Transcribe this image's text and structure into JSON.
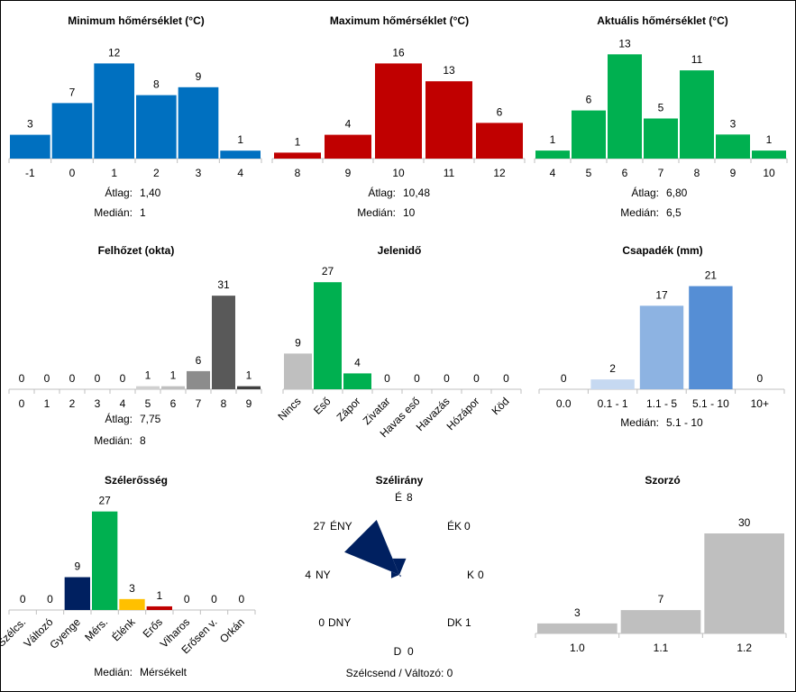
{
  "chart_data": [
    {
      "id": "min-temp",
      "type": "bar",
      "title": "Minimum hőmérséklet (°C)",
      "categories": [
        "-1",
        "0",
        "1",
        "2",
        "3",
        "4"
      ],
      "values": [
        3,
        7,
        12,
        8,
        9,
        1
      ],
      "colors": [
        "#0070c0",
        "#0070c0",
        "#0070c0",
        "#0070c0",
        "#0070c0",
        "#0070c0"
      ],
      "stats": [
        {
          "label": "Átlag:",
          "value": "1,40"
        },
        {
          "label": "Medián:",
          "value": "1"
        }
      ]
    },
    {
      "id": "max-temp",
      "type": "bar",
      "title": "Maximum hőmérséklet (°C)",
      "categories": [
        "8",
        "9",
        "10",
        "11",
        "12"
      ],
      "values": [
        1,
        4,
        16,
        13,
        6
      ],
      "colors": [
        "#c00000",
        "#c00000",
        "#c00000",
        "#c00000",
        "#c00000"
      ],
      "stats": [
        {
          "label": "Átlag:",
          "value": "10,48"
        },
        {
          "label": "Medián:",
          "value": "10"
        }
      ]
    },
    {
      "id": "current-temp",
      "type": "bar",
      "title": "Aktuális hőmérséklet (°C)",
      "categories": [
        "4",
        "5",
        "6",
        "7",
        "8",
        "9",
        "10"
      ],
      "values": [
        1,
        6,
        13,
        5,
        11,
        3,
        1
      ],
      "colors": [
        "#00b050",
        "#00b050",
        "#00b050",
        "#00b050",
        "#00b050",
        "#00b050",
        "#00b050"
      ],
      "stats": [
        {
          "label": "Átlag:",
          "value": "6,80"
        },
        {
          "label": "Medián:",
          "value": "6,5"
        }
      ]
    },
    {
      "id": "cloud",
      "type": "bar",
      "title": "Felhőzet (okta)",
      "categories": [
        "0",
        "1",
        "2",
        "3",
        "4",
        "5",
        "6",
        "7",
        "8",
        "9"
      ],
      "values": [
        0,
        0,
        0,
        0,
        0,
        1,
        1,
        6,
        31,
        1
      ],
      "colors": [
        "#d9d9d9",
        "#d9d9d9",
        "#d9d9d9",
        "#d9d9d9",
        "#d9d9d9",
        "#d0d0d0",
        "#c0c0c0",
        "#8c8c8c",
        "#595959",
        "#404040"
      ],
      "stats": [
        {
          "label": "Átlag:",
          "value": "7,75"
        },
        {
          "label": "Medián:",
          "value": "8"
        }
      ]
    },
    {
      "id": "weather",
      "type": "bar",
      "title": "Jelenidő",
      "categories": [
        "Nincs",
        "Eső",
        "Zápor",
        "Zivatar",
        "Havas eső",
        "Havazás",
        "Hózápor",
        "Köd"
      ],
      "values": [
        9,
        27,
        4,
        0,
        0,
        0,
        0,
        0
      ],
      "colors": [
        "#bfbfbf",
        "#00b050",
        "#00b050",
        "#bfbfbf",
        "#bfbfbf",
        "#bfbfbf",
        "#bfbfbf",
        "#bfbfbf"
      ],
      "stats": []
    },
    {
      "id": "precip",
      "type": "bar",
      "title": "Csapadék (mm)",
      "categories": [
        "0.0",
        "0.1 - 1",
        "1.1 - 5",
        "5.1 - 10",
        "10+"
      ],
      "values": [
        0,
        2,
        17,
        21,
        0
      ],
      "colors": [
        "#dce6f2",
        "#c6d9f1",
        "#8db3e2",
        "#558ed5",
        "#1f4e9a"
      ],
      "stats": [
        {
          "label": "Medián:",
          "value": "5.1 - 10"
        }
      ]
    },
    {
      "id": "wind-strength",
      "type": "bar",
      "title": "Szélerősség",
      "categories": [
        "Szélcs.",
        "Változó",
        "Gyenge",
        "Mérs.",
        "Élénk",
        "Erős",
        "Viharos",
        "Erősen v.",
        "Orkán"
      ],
      "values": [
        0,
        0,
        9,
        27,
        3,
        1,
        0,
        0,
        0
      ],
      "colors": [
        "#bfbfbf",
        "#bfbfbf",
        "#002060",
        "#00b050",
        "#ffc000",
        "#c00000",
        "#bfbfbf",
        "#bfbfbf",
        "#bfbfbf"
      ],
      "stats": [
        {
          "label": "Medián:",
          "value": "Mérsékelt"
        }
      ]
    },
    {
      "id": "wind-direction",
      "type": "rose",
      "title": "Szélirány",
      "directions": [
        {
          "name": "É",
          "value": 8
        },
        {
          "name": "ÉK",
          "value": 0
        },
        {
          "name": "K",
          "value": 0
        },
        {
          "name": "DK",
          "value": 1
        },
        {
          "name": "D",
          "value": 0
        },
        {
          "name": "DNY",
          "value": 0
        },
        {
          "name": "NY",
          "value": 4
        },
        {
          "name": "ÉNY",
          "value": 27
        }
      ],
      "color": "#002060",
      "note": "Szélcsend / Változó: 0"
    },
    {
      "id": "multiplier",
      "type": "bar",
      "title": "Szorzó",
      "categories": [
        "1.0",
        "1.1",
        "1.2"
      ],
      "values": [
        3,
        7,
        30
      ],
      "colors": [
        "#bfbfbf",
        "#bfbfbf",
        "#bfbfbf"
      ],
      "stats": []
    }
  ]
}
